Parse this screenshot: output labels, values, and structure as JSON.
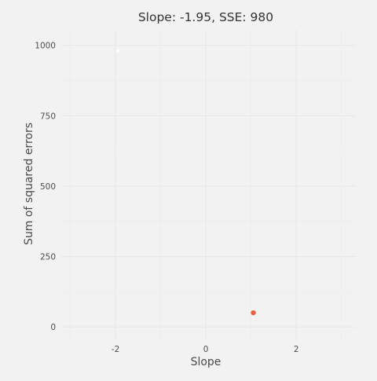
{
  "chart_data": {
    "type": "scatter",
    "title": "Slope: -1.95, SSE: 980",
    "xlabel": "Slope",
    "ylabel": "Sum of squared errors",
    "xlim": [
      -3.2,
      3.3
    ],
    "ylim": [
      -50,
      1055
    ],
    "x_ticks": [
      -2,
      0,
      2
    ],
    "y_ticks": [
      0,
      250,
      500,
      750,
      1000
    ],
    "x_tick_labels": [
      "-2",
      "0",
      "2"
    ],
    "y_tick_labels": [
      "0",
      "250",
      "500",
      "750",
      "1000"
    ],
    "grid": true,
    "points": [
      {
        "x": -1.95,
        "y": 980,
        "color": "#ffffff"
      },
      {
        "x": 1.05,
        "y": 50,
        "color": "#e8613c"
      }
    ]
  }
}
